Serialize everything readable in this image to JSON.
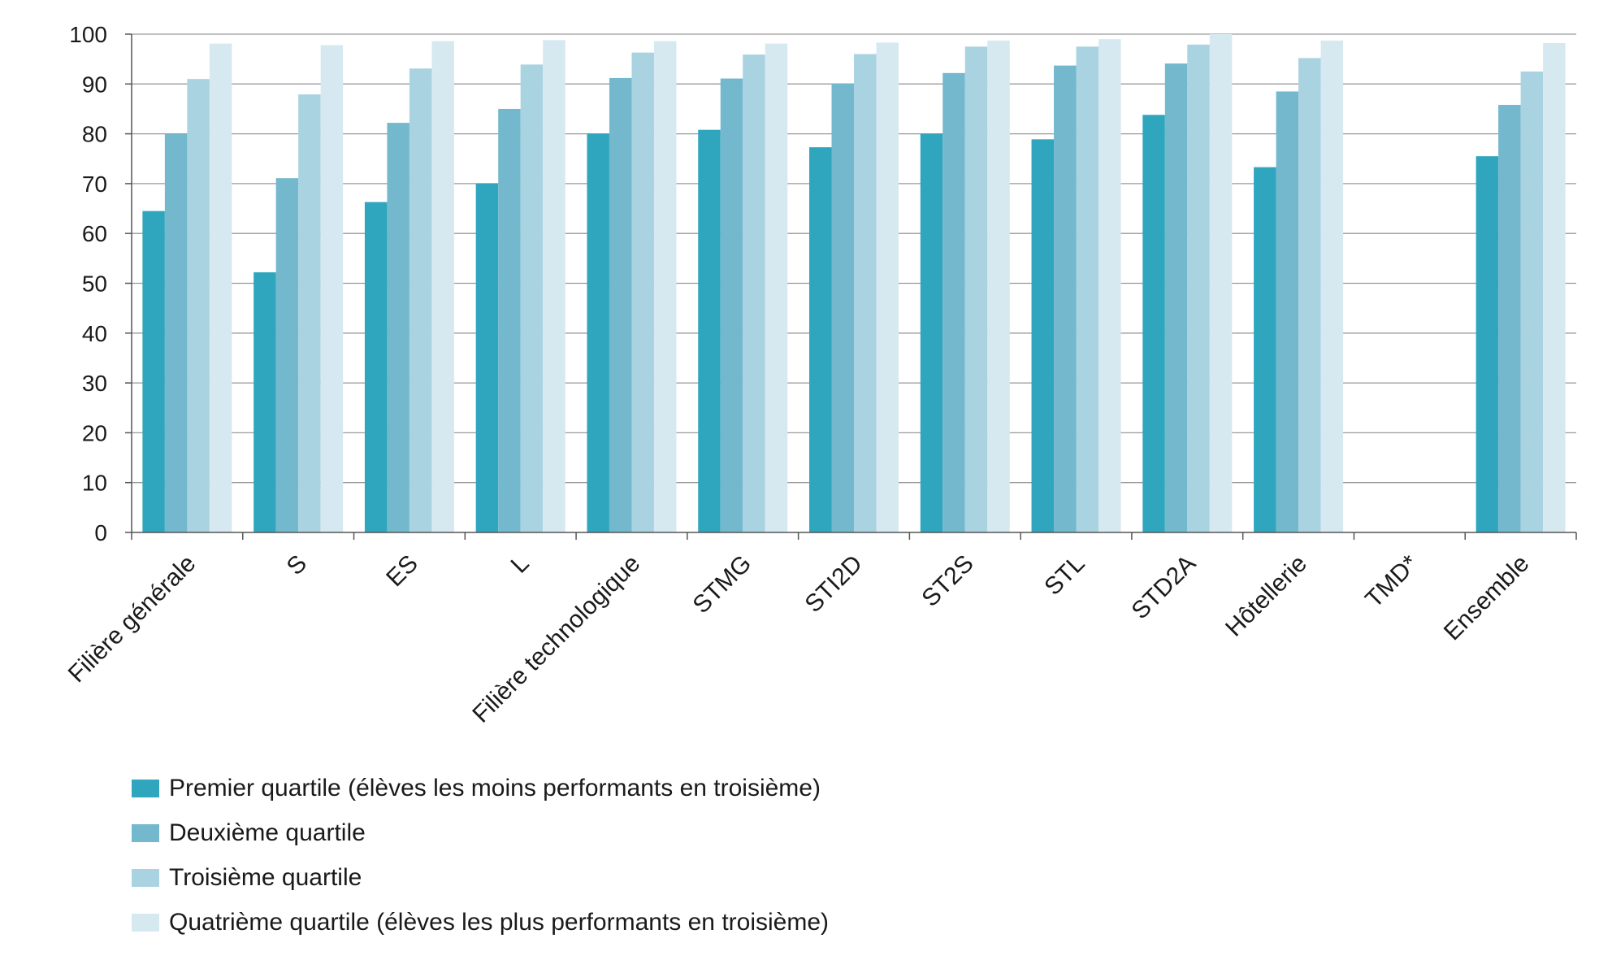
{
  "chart_data": {
    "type": "bar",
    "title": "",
    "xlabel": "",
    "ylabel": "",
    "ylim": [
      0,
      100
    ],
    "yticks": [
      0,
      10,
      20,
      30,
      40,
      50,
      60,
      70,
      80,
      90,
      100
    ],
    "grid": true,
    "legend_position": "bottom-left",
    "categories": [
      "Filière générale",
      "S",
      "ES",
      "L",
      "Filière technologique",
      "STMG",
      "STI2D",
      "ST2S",
      "STL",
      "STD2A",
      "Hôtellerie",
      "TMD*",
      "Ensemble"
    ],
    "series": [
      {
        "name": "Premier quartile (élèves les moins performants en troisième)",
        "color": "#2fa6bd",
        "values": [
          64.5,
          52.2,
          66.3,
          70.0,
          80.0,
          80.8,
          77.3,
          80.0,
          78.9,
          83.8,
          73.3,
          null,
          75.5
        ]
      },
      {
        "name": "Deuxième quartile",
        "color": "#74b8cd",
        "values": [
          80.0,
          71.1,
          82.2,
          85.0,
          91.2,
          91.1,
          90.1,
          92.2,
          93.7,
          94.1,
          88.5,
          null,
          85.8
        ]
      },
      {
        "name": "Troisième quartile",
        "color": "#a9d3e0",
        "values": [
          91.0,
          87.9,
          93.1,
          93.9,
          96.3,
          95.9,
          96.0,
          97.5,
          97.5,
          97.9,
          95.2,
          null,
          92.5
        ]
      },
      {
        "name": "Quatrième quartile (élèves les plus performants en troisième)",
        "color": "#d6e9f0",
        "values": [
          98.1,
          97.8,
          98.6,
          98.8,
          98.6,
          98.1,
          98.3,
          98.7,
          99.0,
          100.0,
          98.7,
          null,
          98.2
        ]
      }
    ]
  }
}
